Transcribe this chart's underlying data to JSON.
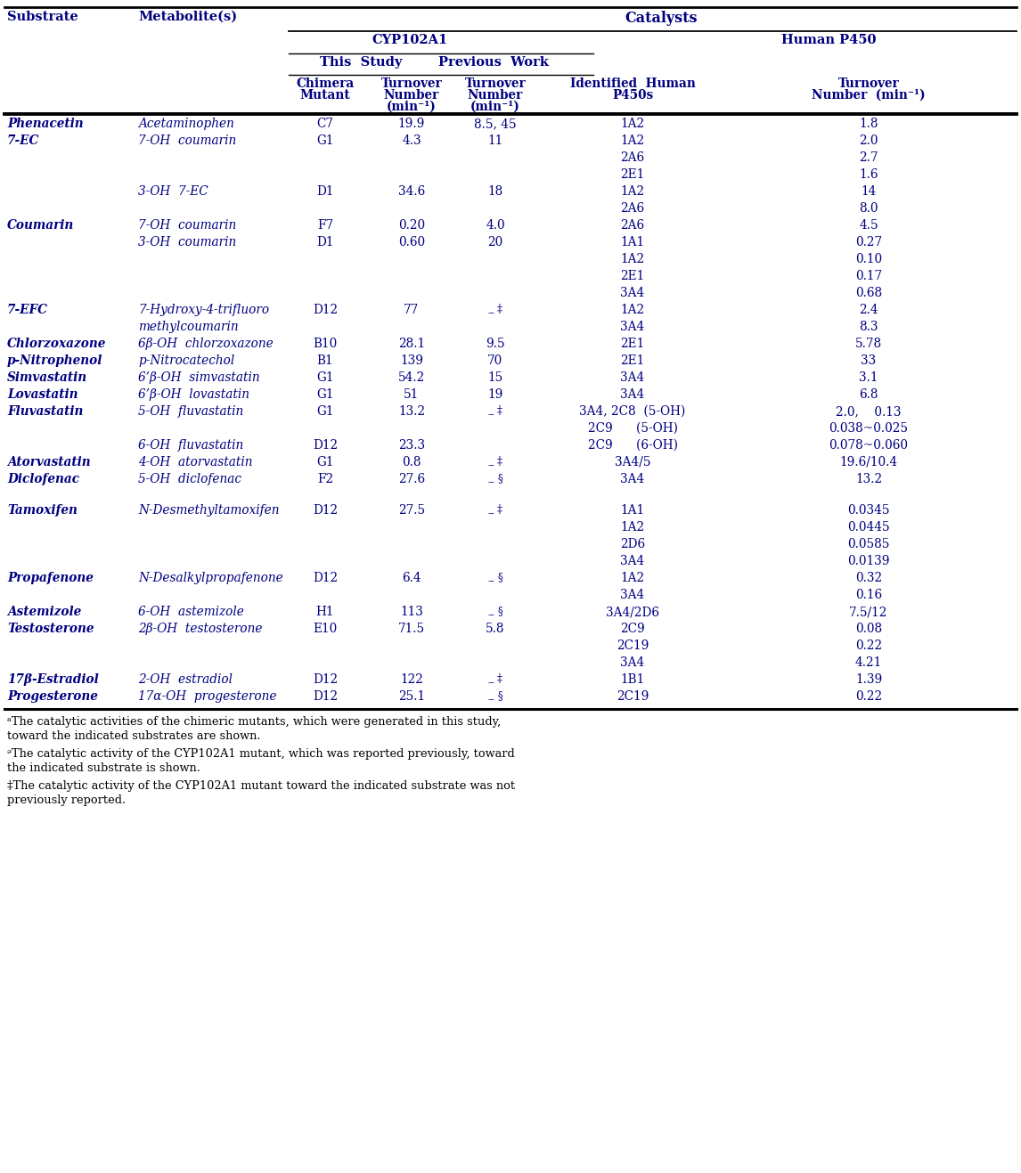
{
  "text_color": "#000080",
  "rows": [
    [
      "Phenacetin",
      "Acetaminophen",
      "C7",
      "19.9",
      "8.5, 45",
      "1A2",
      "1.8"
    ],
    [
      "7-EC",
      "7-OH  coumarin",
      "G1",
      "4.3",
      "11",
      "1A2",
      "2.0"
    ],
    [
      "",
      "",
      "",
      "",
      "",
      "2A6",
      "2.7"
    ],
    [
      "",
      "",
      "",
      "",
      "",
      "2E1",
      "1.6"
    ],
    [
      "",
      "3-OH  7-EC",
      "D1",
      "34.6",
      "18",
      "1A2",
      "14"
    ],
    [
      "",
      "",
      "",
      "",
      "",
      "2A6",
      "8.0"
    ],
    [
      "Coumarin",
      "7-OH  coumarin",
      "F7",
      "0.20",
      "4.0",
      "2A6",
      "4.5"
    ],
    [
      "",
      "3-OH  coumarin",
      "D1",
      "0.60",
      "20",
      "1A1",
      "0.27"
    ],
    [
      "",
      "",
      "",
      "",
      "",
      "1A2",
      "0.10"
    ],
    [
      "",
      "",
      "",
      "",
      "",
      "2E1",
      "0.17"
    ],
    [
      "",
      "",
      "",
      "",
      "",
      "3A4",
      "0.68"
    ],
    [
      "7-EFC",
      "7-Hydroxy-4-trifluoro",
      "D12",
      "77",
      "-‡",
      "1A2",
      "2.4"
    ],
    [
      "",
      "methylcoumarin",
      "",
      "",
      "",
      "3A4",
      "8.3"
    ],
    [
      "Chlorzoxazone",
      "6β-OH  chlorzoxazone",
      "B10",
      "28.1",
      "9.5",
      "2E1",
      "5.78"
    ],
    [
      "p-Nitrophenol",
      "p-Nitrocatechol",
      "B1",
      "139",
      "70",
      "2E1",
      "33"
    ],
    [
      "Simvastatin",
      "6’β-OH  simvastatin",
      "G1",
      "54.2",
      "15",
      "3A4",
      "3.1"
    ],
    [
      "Lovastatin",
      "6’β-OH  lovastatin",
      "G1",
      "51",
      "19",
      "3A4",
      "6.8"
    ],
    [
      "Fluvastatin",
      "5-OH  fluvastatin",
      "G1",
      "13.2",
      "-‡",
      "3A4, 2C8  (5-OH)",
      "2.0,    0.13"
    ],
    [
      "",
      "",
      "",
      "",
      "",
      "2C9      (5-OH)",
      "0.038~0.025"
    ],
    [
      "",
      "6-OH  fluvastatin",
      "D12",
      "23.3",
      "",
      "2C9      (6-OH)",
      "0.078~0.060"
    ],
    [
      "Atorvastatin",
      "4-OH  atorvastatin",
      "G1",
      "0.8",
      "-‡",
      "3A4/5",
      "19.6/10.4"
    ],
    [
      "Diclofenac",
      "5-OH  diclofenac",
      "F2",
      "27.6",
      "-§",
      "3A4",
      "13.2"
    ],
    [
      "",
      "",
      "",
      "",
      "",
      "",
      ""
    ],
    [
      "Tamoxifen",
      "N-Desmethyltamoxifen",
      "D12",
      "27.5",
      "-‡",
      "1A1",
      "0.0345"
    ],
    [
      "",
      "",
      "",
      "",
      "",
      "1A2",
      "0.0445"
    ],
    [
      "",
      "",
      "",
      "",
      "",
      "2D6",
      "0.0585"
    ],
    [
      "",
      "",
      "",
      "",
      "",
      "3A4",
      "0.0139"
    ],
    [
      "Propafenone",
      "N-Desalkylpropafenone",
      "D12",
      "6.4",
      "-§",
      "1A2",
      "0.32"
    ],
    [
      "",
      "",
      "",
      "",
      "",
      "3A4",
      "0.16"
    ],
    [
      "Astemizole",
      "6-OH  astemizole",
      "H1",
      "113",
      "-§",
      "3A4/2D6",
      "7.5/12"
    ],
    [
      "Testosterone",
      "2β-OH  testosterone",
      "E10",
      "71.5",
      "5.8",
      "2C9",
      "0.08"
    ],
    [
      "",
      "",
      "",
      "",
      "",
      "2C19",
      "0.22"
    ],
    [
      "",
      "",
      "",
      "",
      "",
      "3A4",
      "4.21"
    ],
    [
      "17β-Estradiol",
      "2-OH  estradiol",
      "D12",
      "122",
      "-‡",
      "1B1",
      "1.39"
    ],
    [
      "Progesterone",
      "17α-OH  progesterone",
      "D12",
      "25.1",
      "-§",
      "2C19",
      "0.22"
    ]
  ],
  "footnote_lines": [
    [
      "ᵃThe catalytic activities of the chimeric mutants, which were generated in this study,",
      "toward the indicated substrates are shown."
    ],
    [
      "ᵊThe catalytic activity of the CYP102A1 mutant, which was reported previously, toward",
      "the indicated substrate is shown."
    ],
    [
      "‡The catalytic activity of the CYP102A1 mutant toward the indicated substrate was not",
      "previously reported."
    ]
  ]
}
